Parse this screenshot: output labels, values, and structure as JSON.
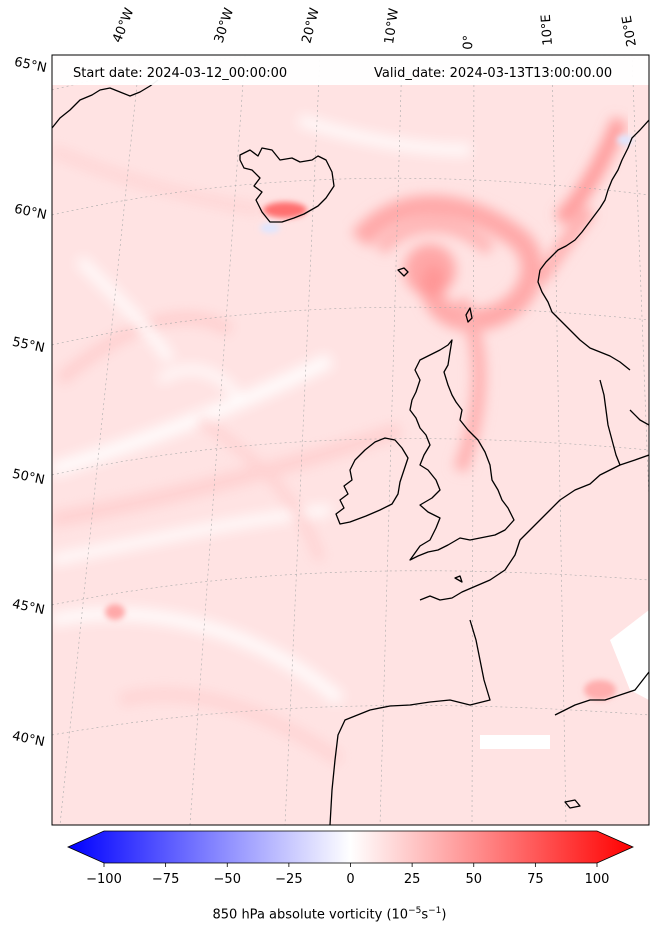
{
  "header": {
    "start_date": "Start date: 2024-03-12_00:00:00",
    "valid_date": "Valid_date: 2024-03-13T13:00:00.00"
  },
  "longitude_labels": [
    "40°W",
    "30°W",
    "20°W",
    "10°W",
    "0°",
    "10°E",
    "20°E"
  ],
  "latitude_labels": [
    "65°N",
    "60°N",
    "55°N",
    "50°N",
    "45°N",
    "40°N"
  ],
  "colorbar": {
    "ticks": [
      "−100",
      "−75",
      "−50",
      "−25",
      "0",
      "25",
      "50",
      "75",
      "100"
    ],
    "tick_values": [
      -100,
      -75,
      -50,
      -25,
      0,
      25,
      50,
      75,
      100
    ],
    "range": [
      -100,
      100
    ],
    "label_main": "850 hPa absolute vorticity (10",
    "label_exp1": "−5",
    "label_mid": "s",
    "label_exp2": "−1",
    "label_end": ")",
    "cmap_low": "#0000ff",
    "cmap_mid": "#ffffff",
    "cmap_high": "#ff0000"
  },
  "field": {
    "background": "#ffeaea",
    "coastline_color": "#000000"
  }
}
